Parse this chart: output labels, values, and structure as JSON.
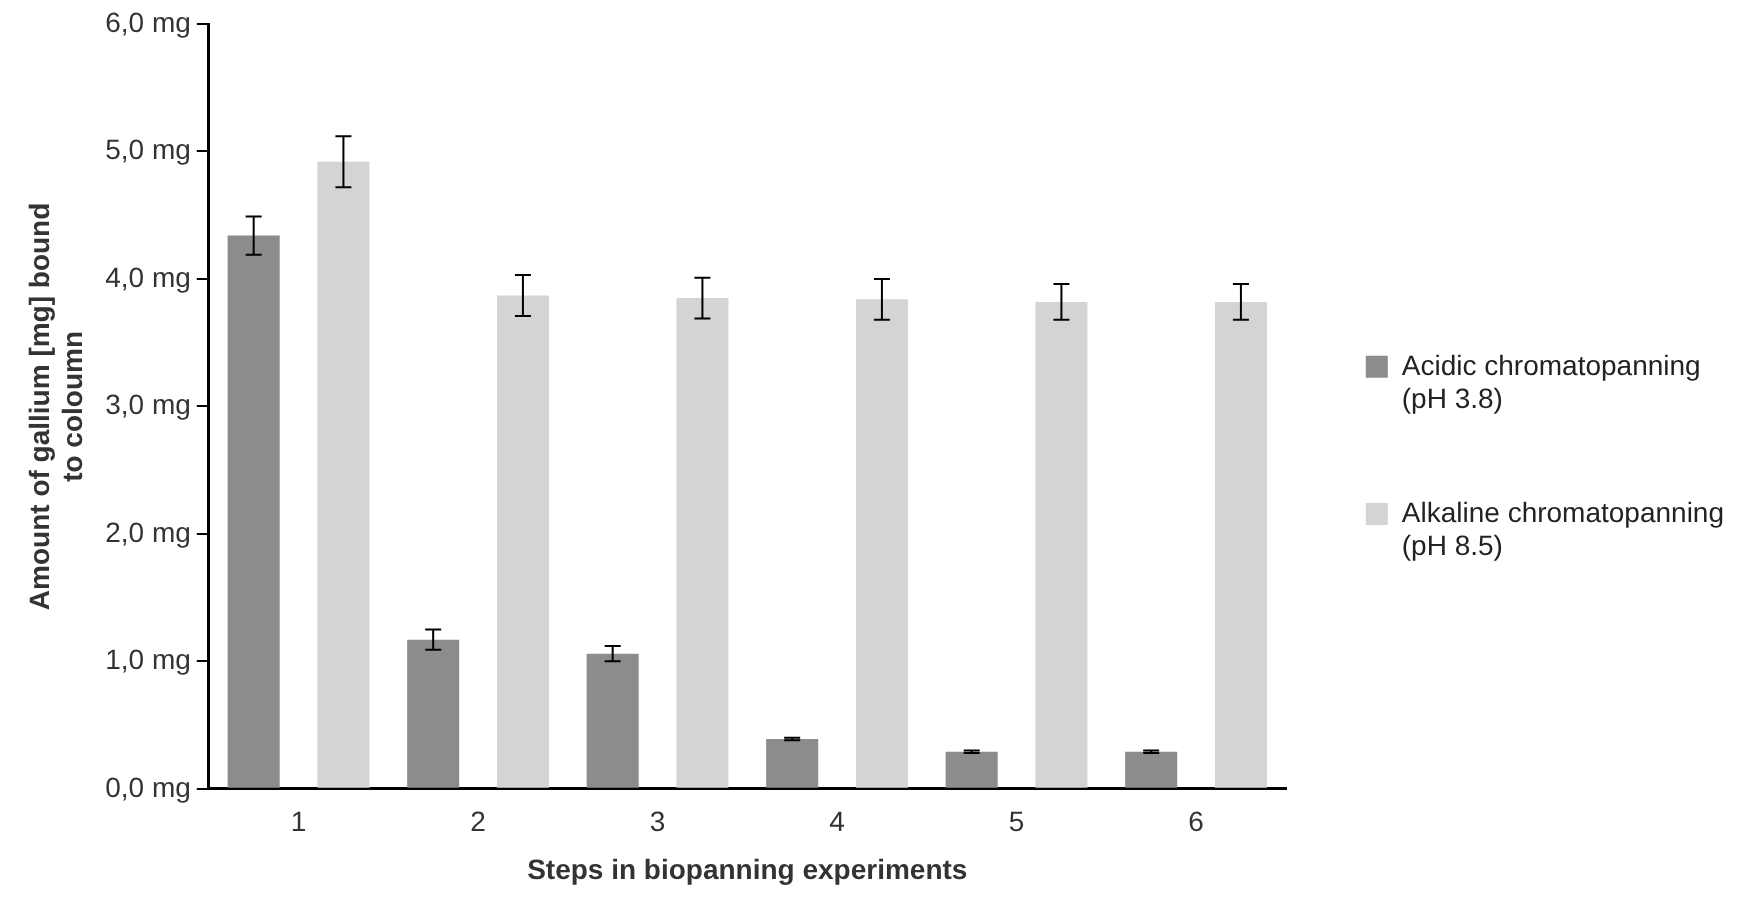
{
  "chart_data": {
    "type": "bar",
    "xlabel": "Steps in biopanning experiments",
    "ylabel": "Amount of gallium [mg] bound to coloumn",
    "categories": [
      "1",
      "2",
      "3",
      "4",
      "5",
      "6"
    ],
    "series": [
      {
        "name": "Acidic chromatopanning (pH 3.8)",
        "color": "#8c8c8c",
        "values": [
          4.34,
          1.17,
          1.06,
          0.39,
          0.29,
          0.29
        ],
        "errors": [
          0.15,
          0.08,
          0.06,
          0.01,
          0.01,
          0.01
        ]
      },
      {
        "name": "Alkaline chromatopanning (pH 8.5)",
        "color": "#d4d4d4",
        "values": [
          4.92,
          3.87,
          3.85,
          3.84,
          3.82,
          3.82
        ],
        "errors": [
          0.2,
          0.16,
          0.16,
          0.16,
          0.14,
          0.14
        ]
      }
    ],
    "ylim": [
      0,
      6
    ],
    "yticks": [
      {
        "value": 0,
        "label": "0,0 mg"
      },
      {
        "value": 1,
        "label": "1,0 mg"
      },
      {
        "value": 2,
        "label": "2,0 mg"
      },
      {
        "value": 3,
        "label": "3,0 mg"
      },
      {
        "value": 4,
        "label": "4,0 mg"
      },
      {
        "value": 5,
        "label": "5,0 mg"
      },
      {
        "value": 6,
        "label": "6,0 mg"
      }
    ],
    "grid": false,
    "legend": "right"
  }
}
